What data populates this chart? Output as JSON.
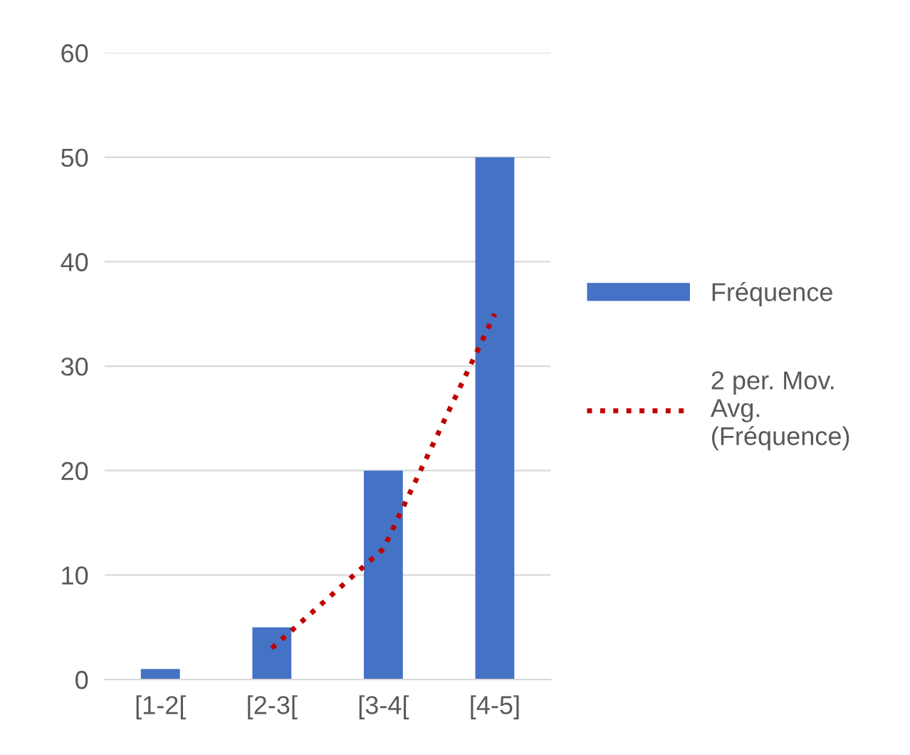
{
  "chart_data": {
    "type": "bar",
    "categories": [
      "[1-2[",
      "[2-3[",
      "[3-4[",
      "[4-5]"
    ],
    "series": [
      {
        "name": "Fréquence",
        "color": "#4472c4",
        "values": [
          1,
          5,
          20,
          50
        ]
      },
      {
        "name": "2 per. Mov.\nAvg.\n(Fréquence)",
        "type": "line",
        "color": "#c00000",
        "line_style": "dotted",
        "values": [
          null,
          3,
          12.5,
          35
        ]
      }
    ],
    "ylim": [
      0,
      60
    ],
    "yticks": [
      0,
      10,
      20,
      30,
      40,
      50,
      60
    ],
    "grid": "y",
    "legend": "right"
  }
}
